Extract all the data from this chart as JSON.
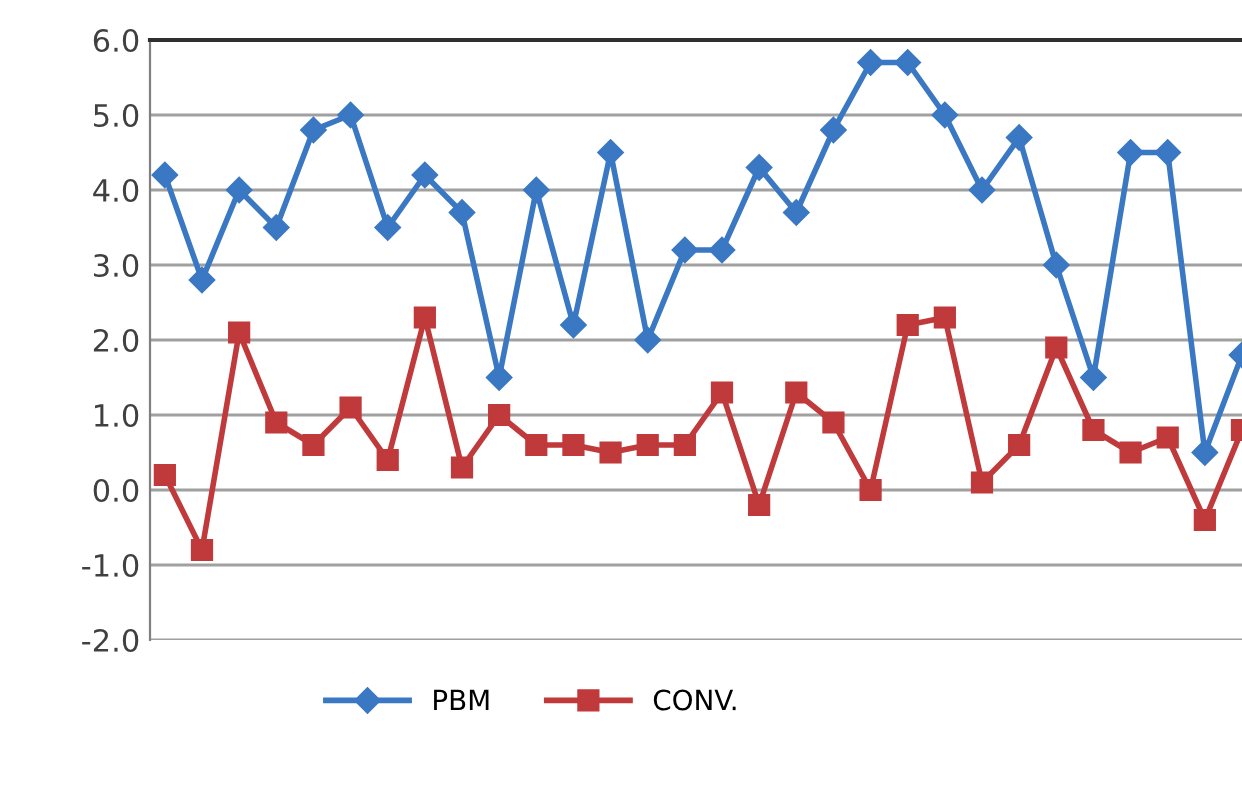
{
  "chart_data": {
    "type": "line",
    "categories": [
      null,
      null,
      null,
      null,
      null,
      null,
      null,
      null,
      null,
      null,
      null,
      null,
      null,
      null,
      null,
      null,
      null,
      null,
      null,
      null,
      null,
      null,
      null,
      null,
      null,
      null,
      null,
      null,
      null,
      null
    ],
    "series": [
      {
        "name": "PBM",
        "color": "#3a78c3",
        "marker": "diamond",
        "values": [
          4.2,
          2.8,
          4.0,
          3.5,
          4.8,
          5.0,
          3.5,
          4.2,
          3.7,
          1.5,
          4.0,
          2.2,
          4.5,
          2.0,
          3.2,
          3.2,
          4.3,
          3.7,
          4.8,
          5.7,
          5.7,
          5.0,
          4.0,
          4.7,
          3.0,
          1.5,
          4.5,
          4.5,
          0.5,
          1.8
        ]
      },
      {
        "name": "CONV.",
        "color": "#c0393b",
        "marker": "square",
        "values": [
          0.2,
          -0.8,
          2.1,
          0.9,
          0.6,
          1.1,
          0.4,
          2.3,
          0.3,
          1.0,
          0.6,
          0.6,
          0.5,
          0.6,
          0.6,
          1.3,
          -0.2,
          1.3,
          0.9,
          0.0,
          2.2,
          2.3,
          0.1,
          0.6,
          1.9,
          0.8,
          0.5,
          0.7,
          -0.4,
          0.8
        ]
      }
    ],
    "ylim": [
      -2,
      6
    ],
    "yticks": [
      {
        "value": -2,
        "label": "-2.0"
      },
      {
        "value": -1,
        "label": "-1.0"
      },
      {
        "value": 0,
        "label": "0.0"
      },
      {
        "value": 1,
        "label": "1.0"
      },
      {
        "value": 2,
        "label": "2.0"
      },
      {
        "value": 3,
        "label": "3.0"
      },
      {
        "value": 4,
        "label": "4.0"
      },
      {
        "value": 5,
        "label": "5.0"
      },
      {
        "value": 6,
        "label": "6.0"
      }
    ],
    "grid": "y",
    "legend": "bottom",
    "line_style": "solid"
  }
}
